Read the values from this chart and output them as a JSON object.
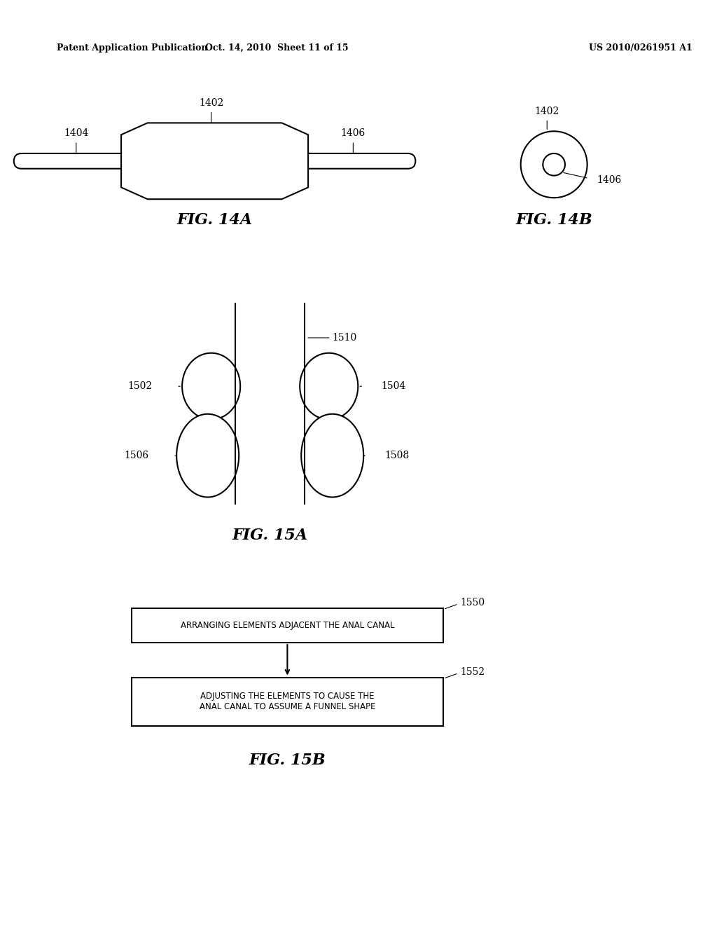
{
  "bg_color": "#ffffff",
  "line_color": "#000000",
  "header_left": "Patent Application Publication",
  "header_mid": "Oct. 14, 2010  Sheet 11 of 15",
  "header_right": "US 2010/0261951 A1",
  "fig14a_label": "FIG. 14A",
  "fig14b_label": "FIG. 14B",
  "fig15a_label": "FIG. 15A",
  "fig15b_label": "FIG. 15B",
  "label_1402_a": "1402",
  "label_1404": "1404",
  "label_1406_a": "1406",
  "label_1402_b": "1402",
  "label_1406_b": "1406",
  "label_1502": "1502",
  "label_1504": "1504",
  "label_1506": "1506",
  "label_1508": "1508",
  "label_1510": "1510",
  "label_1550": "1550",
  "label_1552": "1552",
  "box1_text": "ARRANGING ELEMENTS ADJACENT THE ANAL CANAL",
  "box2_text": "ADJUSTING THE ELEMENTS TO CAUSE THE\nANAL CANAL TO ASSUME A FUNNEL SHAPE"
}
